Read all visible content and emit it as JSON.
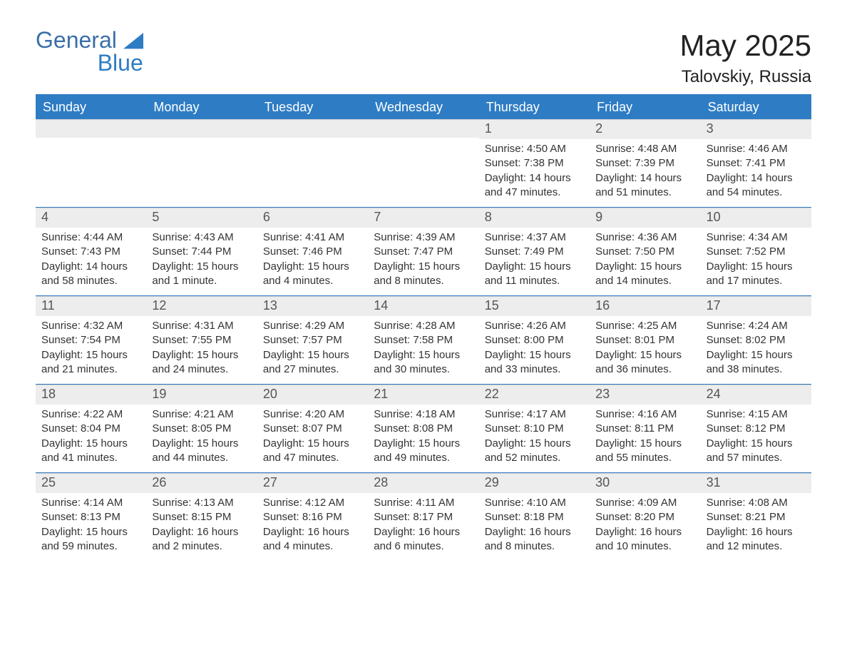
{
  "logo": {
    "word1": "General",
    "word2": "Blue",
    "color_primary": "#3a6fa8",
    "color_accent": "#2e7cc4"
  },
  "title": "May 2025",
  "location": "Talovskiy, Russia",
  "styling": {
    "header_bg": "#2e7cc4",
    "header_text_color": "#ffffff",
    "daynum_bg": "#ededed",
    "daynum_color": "#555555",
    "body_text_color": "#333333",
    "row_divider_color": "#2e7cc4",
    "background_color": "#ffffff",
    "title_fontsize": 42,
    "location_fontsize": 24,
    "header_fontsize": 18,
    "cell_fontsize": 15,
    "label_sunrise": "Sunrise: ",
    "label_sunset": "Sunset: ",
    "label_daylight_prefix": "Daylight: ",
    "label_daylight_suffix": "."
  },
  "weekdays": [
    "Sunday",
    "Monday",
    "Tuesday",
    "Wednesday",
    "Thursday",
    "Friday",
    "Saturday"
  ],
  "rows": [
    [
      {
        "empty": true
      },
      {
        "empty": true
      },
      {
        "empty": true
      },
      {
        "empty": true
      },
      {
        "day": "1",
        "sunrise": "4:50 AM",
        "sunset": "7:38 PM",
        "daylight": "14 hours and 47 minutes"
      },
      {
        "day": "2",
        "sunrise": "4:48 AM",
        "sunset": "7:39 PM",
        "daylight": "14 hours and 51 minutes"
      },
      {
        "day": "3",
        "sunrise": "4:46 AM",
        "sunset": "7:41 PM",
        "daylight": "14 hours and 54 minutes"
      }
    ],
    [
      {
        "day": "4",
        "sunrise": "4:44 AM",
        "sunset": "7:43 PM",
        "daylight": "14 hours and 58 minutes"
      },
      {
        "day": "5",
        "sunrise": "4:43 AM",
        "sunset": "7:44 PM",
        "daylight": "15 hours and 1 minute"
      },
      {
        "day": "6",
        "sunrise": "4:41 AM",
        "sunset": "7:46 PM",
        "daylight": "15 hours and 4 minutes"
      },
      {
        "day": "7",
        "sunrise": "4:39 AM",
        "sunset": "7:47 PM",
        "daylight": "15 hours and 8 minutes"
      },
      {
        "day": "8",
        "sunrise": "4:37 AM",
        "sunset": "7:49 PM",
        "daylight": "15 hours and 11 minutes"
      },
      {
        "day": "9",
        "sunrise": "4:36 AM",
        "sunset": "7:50 PM",
        "daylight": "15 hours and 14 minutes"
      },
      {
        "day": "10",
        "sunrise": "4:34 AM",
        "sunset": "7:52 PM",
        "daylight": "15 hours and 17 minutes"
      }
    ],
    [
      {
        "day": "11",
        "sunrise": "4:32 AM",
        "sunset": "7:54 PM",
        "daylight": "15 hours and 21 minutes"
      },
      {
        "day": "12",
        "sunrise": "4:31 AM",
        "sunset": "7:55 PM",
        "daylight": "15 hours and 24 minutes"
      },
      {
        "day": "13",
        "sunrise": "4:29 AM",
        "sunset": "7:57 PM",
        "daylight": "15 hours and 27 minutes"
      },
      {
        "day": "14",
        "sunrise": "4:28 AM",
        "sunset": "7:58 PM",
        "daylight": "15 hours and 30 minutes"
      },
      {
        "day": "15",
        "sunrise": "4:26 AM",
        "sunset": "8:00 PM",
        "daylight": "15 hours and 33 minutes"
      },
      {
        "day": "16",
        "sunrise": "4:25 AM",
        "sunset": "8:01 PM",
        "daylight": "15 hours and 36 minutes"
      },
      {
        "day": "17",
        "sunrise": "4:24 AM",
        "sunset": "8:02 PM",
        "daylight": "15 hours and 38 minutes"
      }
    ],
    [
      {
        "day": "18",
        "sunrise": "4:22 AM",
        "sunset": "8:04 PM",
        "daylight": "15 hours and 41 minutes"
      },
      {
        "day": "19",
        "sunrise": "4:21 AM",
        "sunset": "8:05 PM",
        "daylight": "15 hours and 44 minutes"
      },
      {
        "day": "20",
        "sunrise": "4:20 AM",
        "sunset": "8:07 PM",
        "daylight": "15 hours and 47 minutes"
      },
      {
        "day": "21",
        "sunrise": "4:18 AM",
        "sunset": "8:08 PM",
        "daylight": "15 hours and 49 minutes"
      },
      {
        "day": "22",
        "sunrise": "4:17 AM",
        "sunset": "8:10 PM",
        "daylight": "15 hours and 52 minutes"
      },
      {
        "day": "23",
        "sunrise": "4:16 AM",
        "sunset": "8:11 PM",
        "daylight": "15 hours and 55 minutes"
      },
      {
        "day": "24",
        "sunrise": "4:15 AM",
        "sunset": "8:12 PM",
        "daylight": "15 hours and 57 minutes"
      }
    ],
    [
      {
        "day": "25",
        "sunrise": "4:14 AM",
        "sunset": "8:13 PM",
        "daylight": "15 hours and 59 minutes"
      },
      {
        "day": "26",
        "sunrise": "4:13 AM",
        "sunset": "8:15 PM",
        "daylight": "16 hours and 2 minutes"
      },
      {
        "day": "27",
        "sunrise": "4:12 AM",
        "sunset": "8:16 PM",
        "daylight": "16 hours and 4 minutes"
      },
      {
        "day": "28",
        "sunrise": "4:11 AM",
        "sunset": "8:17 PM",
        "daylight": "16 hours and 6 minutes"
      },
      {
        "day": "29",
        "sunrise": "4:10 AM",
        "sunset": "8:18 PM",
        "daylight": "16 hours and 8 minutes"
      },
      {
        "day": "30",
        "sunrise": "4:09 AM",
        "sunset": "8:20 PM",
        "daylight": "16 hours and 10 minutes"
      },
      {
        "day": "31",
        "sunrise": "4:08 AM",
        "sunset": "8:21 PM",
        "daylight": "16 hours and 12 minutes"
      }
    ]
  ]
}
